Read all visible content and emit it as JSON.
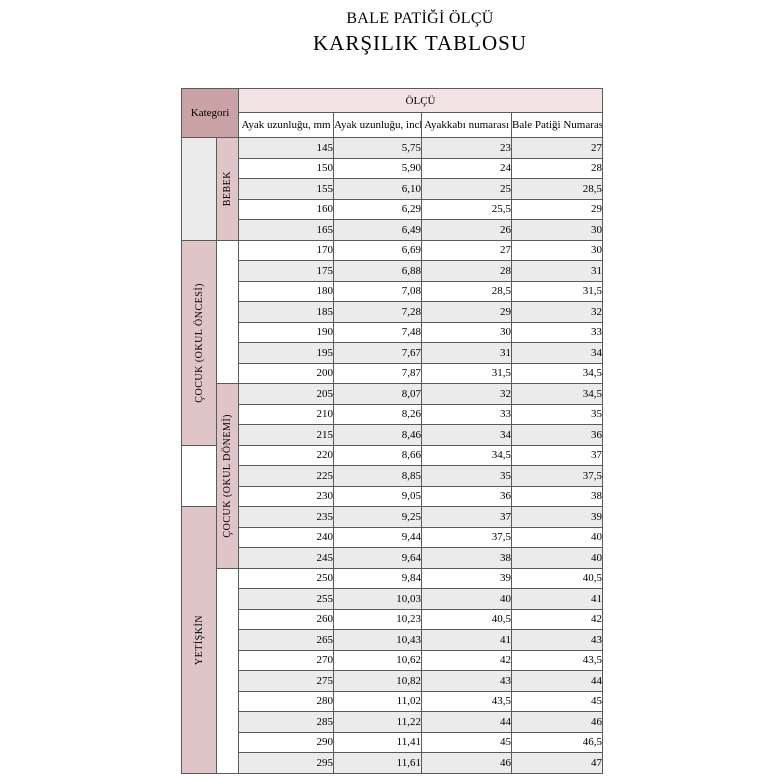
{
  "title": {
    "line1": "BALE PATİĞİ ÖLÇÜ",
    "line2": "KARŞILIK TABLOSU"
  },
  "table": {
    "category_header": "Kategori",
    "measure_header": "ÖLÇÜ",
    "columns": [
      "Ayak uzunluğu, mm",
      "Ayak uzunluğu, inch",
      "Ayakkabı numarası",
      "Bale Patiği Numarası"
    ],
    "category_spans_outer": [
      {
        "label": "",
        "rows": 5,
        "bg": "gray"
      },
      {
        "label": "ÇOCUK (OKUL ÖNCESİ)",
        "rows": 10,
        "bg": "pink"
      },
      {
        "label": "",
        "rows": 3,
        "bg": "white"
      },
      {
        "label": "YETİŞKİN",
        "rows": 13,
        "bg": "pink"
      }
    ],
    "category_spans_inner": [
      {
        "label": "BEBEK",
        "rows": 5,
        "bg": "pink"
      },
      {
        "label": "",
        "rows": 7,
        "bg": "white"
      },
      {
        "label": "ÇOCUK (OKUL DÖNEMİ)",
        "rows": 9,
        "bg": "pink"
      },
      {
        "label": "",
        "rows": 10,
        "bg": "white"
      }
    ],
    "rows": [
      [
        "145",
        "5,75",
        "23",
        "27"
      ],
      [
        "150",
        "5,90",
        "24",
        "28"
      ],
      [
        "155",
        "6,10",
        "25",
        "28,5"
      ],
      [
        "160",
        "6,29",
        "25,5",
        "29"
      ],
      [
        "165",
        "6,49",
        "26",
        "30"
      ],
      [
        "170",
        "6,69",
        "27",
        "30"
      ],
      [
        "175",
        "6,88",
        "28",
        "31"
      ],
      [
        "180",
        "7,08",
        "28,5",
        "31,5"
      ],
      [
        "185",
        "7,28",
        "29",
        "32"
      ],
      [
        "190",
        "7,48",
        "30",
        "33"
      ],
      [
        "195",
        "7,67",
        "31",
        "34"
      ],
      [
        "200",
        "7,87",
        "31,5",
        "34,5"
      ],
      [
        "205",
        "8,07",
        "32",
        "34,5"
      ],
      [
        "210",
        "8,26",
        "33",
        "35"
      ],
      [
        "215",
        "8,46",
        "34",
        "36"
      ],
      [
        "220",
        "8,66",
        "34,5",
        "37"
      ],
      [
        "225",
        "8,85",
        "35",
        "37,5"
      ],
      [
        "230",
        "9,05",
        "36",
        "38"
      ],
      [
        "235",
        "9,25",
        "37",
        "39"
      ],
      [
        "240",
        "9,44",
        "37,5",
        "40"
      ],
      [
        "245",
        "9,64",
        "38",
        "40"
      ],
      [
        "250",
        "9,84",
        "39",
        "40,5"
      ],
      [
        "255",
        "10,03",
        "40",
        "41"
      ],
      [
        "260",
        "10,23",
        "40,5",
        "42"
      ],
      [
        "265",
        "10,43",
        "41",
        "43"
      ],
      [
        "270",
        "10,62",
        "42",
        "43,5"
      ],
      [
        "275",
        "10,82",
        "43",
        "44"
      ],
      [
        "280",
        "11,02",
        "43,5",
        "45"
      ],
      [
        "285",
        "11,22",
        "44",
        "46"
      ],
      [
        "290",
        "11,41",
        "45",
        "46,5"
      ],
      [
        "295",
        "11,61",
        "46",
        "47"
      ]
    ]
  },
  "colors": {
    "category_header_bg": "#c9a2a6",
    "category_label_bg": "#dfc5c8",
    "measure_header_bg": "#f2e3e5",
    "row_alt_bg": "#ebebeb",
    "empty_gray_bg": "#ececec",
    "border": "#5a5a5a",
    "text": "#000000"
  }
}
